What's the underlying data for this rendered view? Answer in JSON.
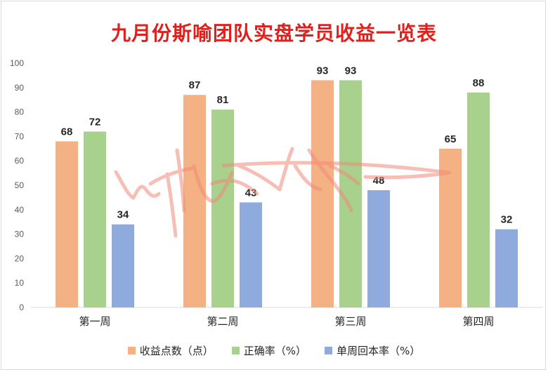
{
  "chart_data": {
    "type": "bar",
    "title": "九月份斯喻团队实盘学员收益一览表",
    "categories": [
      "第一周",
      "第二周",
      "第三周",
      "第四周"
    ],
    "series": [
      {
        "name": "收益点数（点）",
        "values": [
          68,
          87,
          93,
          65
        ],
        "color": "#f4b183"
      },
      {
        "name": "正确率（%）",
        "values": [
          72,
          81,
          93,
          88
        ],
        "color": "#a9d18e"
      },
      {
        "name": "单周回本率（%）",
        "values": [
          34,
          43,
          48,
          32
        ],
        "color": "#8faadc"
      }
    ],
    "ylim": [
      0,
      100
    ],
    "yticks": [
      0,
      10,
      20,
      30,
      40,
      50,
      60,
      70,
      80,
      90,
      100
    ],
    "grid": false,
    "legend_position": "bottom",
    "watermark": "signature"
  }
}
